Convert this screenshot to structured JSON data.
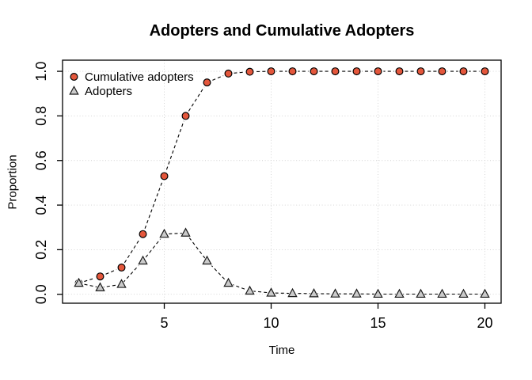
{
  "chart_data": {
    "type": "line",
    "title": "Adopters and Cumulative Adopters",
    "xlabel": "Time",
    "ylabel": "Proportion",
    "x": [
      1,
      2,
      3,
      4,
      5,
      6,
      7,
      8,
      9,
      10,
      11,
      12,
      13,
      14,
      15,
      16,
      17,
      18,
      19,
      20
    ],
    "series": [
      {
        "name": "Cumulative adopters",
        "marker": "circle",
        "marker_fill": "#E4573C",
        "marker_stroke": "#000000",
        "line_color": "#000000",
        "line_style": "dashed",
        "values": [
          0.05,
          0.08,
          0.12,
          0.27,
          0.53,
          0.8,
          0.95,
          0.99,
          0.998,
          1,
          1,
          1,
          1,
          1,
          1,
          1,
          1,
          1,
          1,
          1
        ]
      },
      {
        "name": "Adopters",
        "marker": "triangle",
        "marker_fill": "#CBCBCB",
        "marker_stroke": "#1A1A1A",
        "line_color": "#000000",
        "line_style": "dashed",
        "values": [
          0.05,
          0.03,
          0.045,
          0.15,
          0.27,
          0.275,
          0.15,
          0.05,
          0.015,
          0.006,
          0.004,
          0.003,
          0.002,
          0.002,
          0.001,
          0.001,
          0.001,
          0.001,
          0.001,
          0.001
        ]
      }
    ],
    "xlim": [
      0.24,
      20.76
    ],
    "ylim": [
      -0.04,
      1.05
    ],
    "xticks": [
      {
        "v": 5,
        "label": "5"
      },
      {
        "v": 10,
        "label": "10"
      },
      {
        "v": 15,
        "label": "15"
      },
      {
        "v": 20,
        "label": "20"
      }
    ],
    "yticks": [
      {
        "v": 0,
        "label": "0.0"
      },
      {
        "v": 0.2,
        "label": "0.2"
      },
      {
        "v": 0.4,
        "label": "0.4"
      },
      {
        "v": 0.6,
        "label": "0.6"
      },
      {
        "v": 0.8,
        "label": "0.8"
      },
      {
        "v": 1,
        "label": "1.0"
      }
    ],
    "grid": true,
    "legend": {
      "position": "top-left",
      "entries": [
        "Cumulative adopters",
        "Adopters"
      ]
    }
  },
  "style": {
    "background": "#FFFFFF",
    "grid_color": "#D0D0D0",
    "axis_color": "#000000",
    "text_color": "#000000"
  }
}
